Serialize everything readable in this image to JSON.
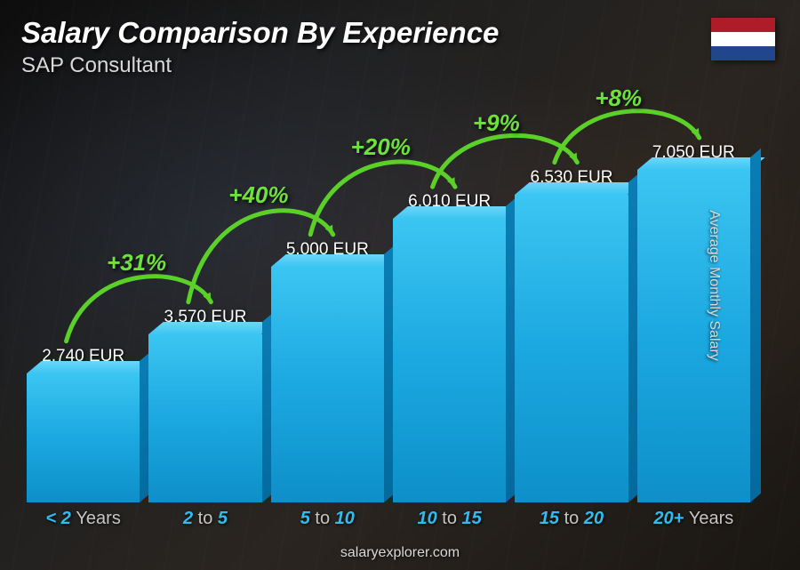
{
  "header": {
    "title": "Salary Comparison By Experience",
    "subtitle": "SAP Consultant"
  },
  "flag": {
    "country": "Netherlands",
    "stripes": [
      "#ae1c28",
      "#ffffff",
      "#21468b"
    ]
  },
  "y_axis_label": "Average Monthly Salary",
  "footer": "salaryexplorer.com",
  "chart": {
    "type": "bar",
    "bar_fill_top": "#3bc5f2",
    "bar_fill_bottom": "#0e8fc9",
    "bar_top_face": "#6dd6f9",
    "bar_side_face": "#046a9e",
    "value_label_color": "#ffffff",
    "x_label_accent_color": "#2fbdf0",
    "x_label_dim_color": "#c5c5c5",
    "pct_color": "#6de23a",
    "arrow_color": "#5bd028",
    "background_color": "#1a1a1a",
    "value_fontsize": 19,
    "x_label_fontsize": 20,
    "pct_fontsize": 26,
    "max_value": 7050,
    "bars": [
      {
        "category_pre": "< 2",
        "category_suf": "Years",
        "label": "2,740 EUR",
        "value": 2740
      },
      {
        "category_pre": "2",
        "category_mid": "to",
        "category_suf": "5",
        "label": "3,570 EUR",
        "value": 3570
      },
      {
        "category_pre": "5",
        "category_mid": "to",
        "category_suf": "10",
        "label": "5,000 EUR",
        "value": 5000
      },
      {
        "category_pre": "10",
        "category_mid": "to",
        "category_suf": "15",
        "label": "6,010 EUR",
        "value": 6010
      },
      {
        "category_pre": "15",
        "category_mid": "to",
        "category_suf": "20",
        "label": "6,530 EUR",
        "value": 6530
      },
      {
        "category_pre": "20+",
        "category_suf": "Years",
        "label": "7,050 EUR",
        "value": 7050
      }
    ],
    "increases": [
      {
        "from": 0,
        "to": 1,
        "label": "+31%"
      },
      {
        "from": 1,
        "to": 2,
        "label": "+40%"
      },
      {
        "from": 2,
        "to": 3,
        "label": "+20%"
      },
      {
        "from": 3,
        "to": 4,
        "label": "+9%"
      },
      {
        "from": 4,
        "to": 5,
        "label": "+8%"
      }
    ]
  }
}
